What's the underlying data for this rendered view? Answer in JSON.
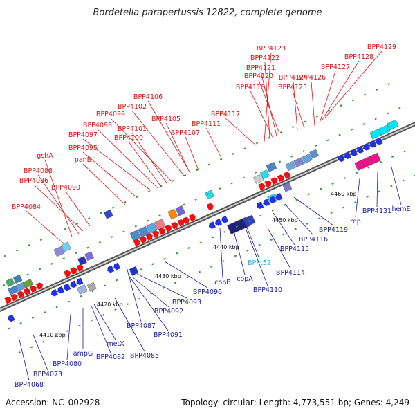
{
  "title": "Bordetella parapertussis 12822, complete genome",
  "footer": {
    "accession": "Accession: NC_002928",
    "summary": "Topology: circular; Length: 4,773,551 bp; Genes: 4,249"
  },
  "colors": {
    "top_label": "#dd1111",
    "bottom_label": "#1a1aa8",
    "rna_label": "#33aadd",
    "backbone": "#888888",
    "tick": "#228822"
  },
  "ticks": [
    "4410 kbp",
    "4420 kbp",
    "4430 kbp",
    "4440 kbp",
    "4450 kbp",
    "4460 kbp"
  ],
  "top_labels": [
    "BPP4123",
    "BPP4122",
    "BPP4121",
    "BPP4120",
    "BPP4118",
    "BPP4124",
    "BPP4125",
    "BPP4126",
    "BPP4127",
    "BPP4128",
    "BPP4129",
    "BPP4106",
    "BPP4102",
    "BPP4099",
    "BPP4105",
    "BPP4098",
    "BPP4101",
    "BPP4097",
    "BPP4100",
    "BPP4117",
    "BPP4111",
    "BPP4107",
    "BPP4095",
    "panB",
    "gshA",
    "BPP4088",
    "BPP4086",
    "BPP4090",
    "BPP4084"
  ],
  "bottom_labels": [
    "BPP4068",
    "BPP4073",
    "BPP4080",
    "ampG",
    "BPP4082",
    "metX",
    "BPP4085",
    "BPP4087",
    "BPP4091",
    "BPP4092",
    "BPP4093",
    "BPP4096",
    "copB",
    "copA",
    "BPPt52",
    "BPP4110",
    "BPP4114",
    "BPP4115",
    "BPP4116",
    "BPP4119",
    "rep",
    "BPP4131",
    "hemE"
  ]
}
